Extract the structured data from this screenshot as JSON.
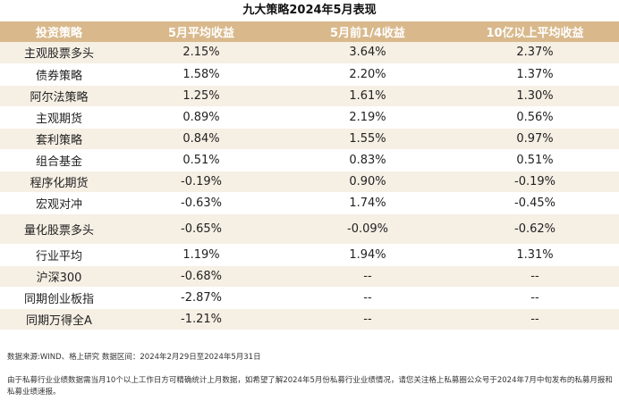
{
  "title": "九大策略2024年5月表现",
  "headers": [
    "投资策略",
    "5月平均收益",
    "5月前1/4收益",
    "10亿以上平均收益"
  ],
  "rows": [
    [
      "主观股票多头",
      "2.15%",
      "3.64%",
      "2.37%"
    ],
    [
      "债券策略",
      "1.58%",
      "2.20%",
      "1.37%"
    ],
    [
      "阿尔法策略",
      "1.25%",
      "1.61%",
      "1.30%"
    ],
    [
      "主观期货",
      "0.89%",
      "2.19%",
      "0.56%"
    ],
    [
      "套利策略",
      "0.84%",
      "1.55%",
      "0.97%"
    ],
    [
      "组合基金",
      "0.51%",
      "0.83%",
      "0.51%"
    ],
    [
      "程序化期货",
      "-0.19%",
      "0.90%",
      "-0.19%"
    ],
    [
      "宏观对冲",
      "-0.63%",
      "1.74%",
      "-0.45%"
    ],
    [
      "量化股票多头",
      "-0.65%",
      "-0.09%",
      "-0.62%"
    ],
    [
      "行业平均",
      "1.19%",
      "1.94%",
      "1.31%"
    ],
    [
      "沪深300",
      "-0.68%",
      "--",
      "--"
    ],
    [
      "同期创业板指",
      "-2.87%",
      "--",
      "--"
    ],
    [
      "同期万得全A",
      "-1.21%",
      "--",
      "--"
    ]
  ],
  "footnote_source": "数据来源:WIND、格上研究   数据区间：2024年2月29日至2024年5月31日",
  "footnote_note": "由于私募行业业绩数据需当月10个以上工作日方可精确统计上月数据，如希望了解2024年5月份私募行业业绩情况，请您关注格上私募圈公众号于2024年7月中旬发布的私募月报和私募业绩速报。",
  "colors": {
    "header_bg": "#d9b98c",
    "stripe_bg": "#f6efe4"
  }
}
